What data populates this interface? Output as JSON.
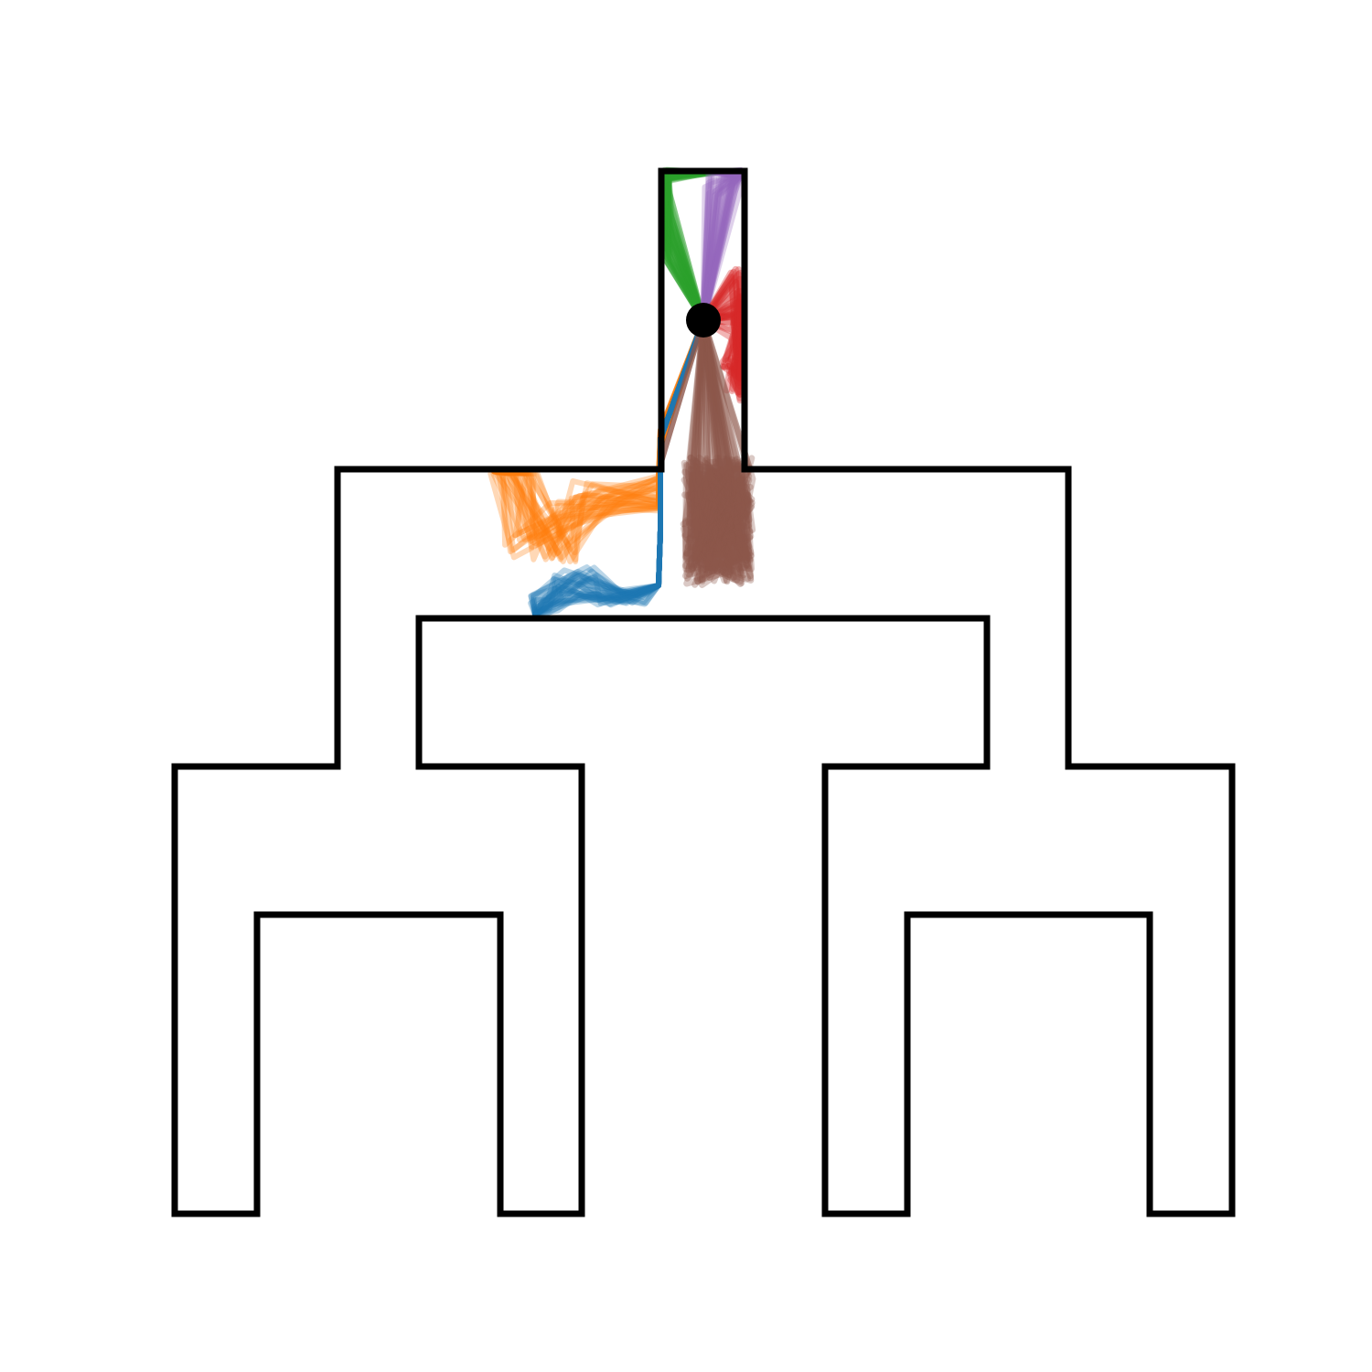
{
  "figure": {
    "background": "#ffffff",
    "maze_stroke_color": "#000000",
    "start_marker_color": "#000000",
    "trajectory_groups": [
      {
        "name": "orange",
        "color": "#ff7f0e"
      },
      {
        "name": "blue",
        "color": "#1f77b4"
      },
      {
        "name": "green",
        "color": "#2ca02c"
      },
      {
        "name": "purple",
        "color": "#9467bd"
      },
      {
        "name": "red",
        "color": "#d62728"
      },
      {
        "name": "brown",
        "color": "#8c564b"
      }
    ]
  }
}
